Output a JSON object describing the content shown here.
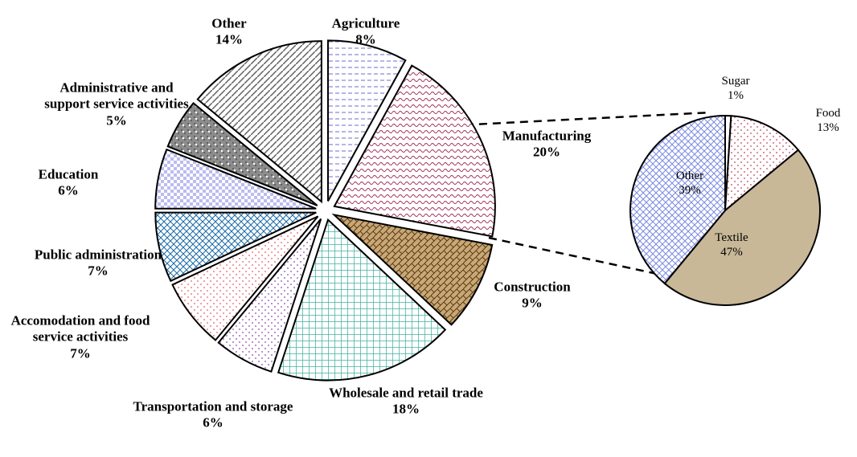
{
  "chart_data": [
    {
      "type": "pie",
      "categories": [
        "Agriculture",
        "Manufacturing",
        "Construction",
        "Wholesale and retail trade",
        "Transportation and storage",
        "Accomodation and food service activities",
        "Public administration",
        "Education",
        "Administrative and support service activities",
        "Other"
      ],
      "values": [
        8,
        20,
        9,
        18,
        6,
        7,
        7,
        6,
        5,
        14
      ],
      "value_labels": [
        "8%",
        "20%",
        "9%",
        "18%",
        "6%",
        "7%",
        "7%",
        "6%",
        "5%",
        "14%"
      ],
      "colors": [
        "#6b6bd6",
        "#a0305a",
        "#7a5a2a",
        "#40b0a0",
        "#8a4aa0",
        "#e06060",
        "#1a6aa8",
        "#7a7ae0",
        "#404040",
        "#606060"
      ]
    },
    {
      "type": "pie",
      "categories": [
        "Sugar",
        "Food",
        "Textile",
        "Other"
      ],
      "values": [
        1,
        13,
        47,
        39
      ],
      "value_labels": [
        "1%",
        "13%",
        "47%",
        "39%"
      ],
      "colors": [
        "#ffffff",
        "#c04060",
        "#c8b898",
        "#7a8ae0"
      ]
    }
  ]
}
